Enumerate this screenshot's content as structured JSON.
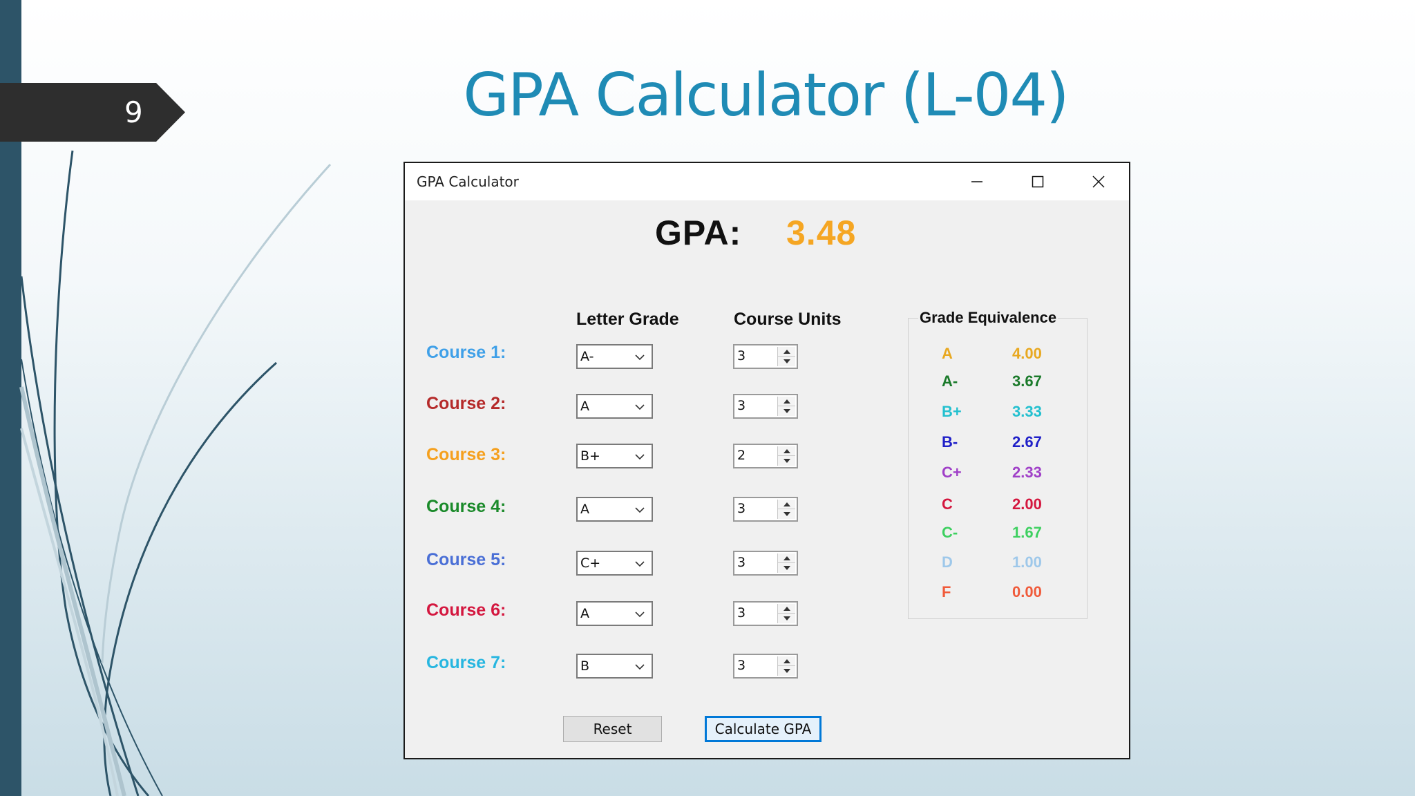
{
  "slide": {
    "number": "9",
    "title": "GPA Calculator (L-04)"
  },
  "window": {
    "title": "GPA Calculator",
    "controls": [
      "minimize-icon",
      "maximize-icon",
      "close-icon"
    ]
  },
  "gpa": {
    "label": "GPA:",
    "value": "3.48"
  },
  "headers": {
    "letter_grade": "Letter Grade",
    "course_units": "Course Units"
  },
  "courses": [
    {
      "label": "Course 1:",
      "color": "#3fa0e8",
      "grade": "A-",
      "units": "3"
    },
    {
      "label": "Course 2:",
      "color": "#b52a2a",
      "grade": "A",
      "units": "3"
    },
    {
      "label": "Course 3:",
      "color": "#f5a01e",
      "grade": "B+",
      "units": "2"
    },
    {
      "label": "Course 4:",
      "color": "#1a8a2a",
      "grade": "A",
      "units": "3"
    },
    {
      "label": "Course 5:",
      "color": "#4a6fd6",
      "grade": "C+",
      "units": "3"
    },
    {
      "label": "Course 6:",
      "color": "#d4173f",
      "grade": "A",
      "units": "3"
    },
    {
      "label": "Course 7:",
      "color": "#27b6e0",
      "grade": "B",
      "units": "3"
    }
  ],
  "grade_equivalence": {
    "title": "Grade Equivalence",
    "rows": [
      {
        "letter": "A",
        "value": "4.00",
        "color": "#e8a820"
      },
      {
        "letter": "A-",
        "value": "3.67",
        "color": "#1a7a2a"
      },
      {
        "letter": "B+",
        "value": "3.33",
        "color": "#23c0cf"
      },
      {
        "letter": "B-",
        "value": "2.67",
        "color": "#2020c8"
      },
      {
        "letter": "C+",
        "value": "2.33",
        "color": "#a040c8"
      },
      {
        "letter": "C",
        "value": "2.00",
        "color": "#d4173f"
      },
      {
        "letter": "C-",
        "value": "1.67",
        "color": "#3ed060"
      },
      {
        "letter": "D",
        "value": "1.00",
        "color": "#9ec8ea"
      },
      {
        "letter": "F",
        "value": "0.00",
        "color": "#f05a3a"
      }
    ]
  },
  "buttons": {
    "reset": "Reset",
    "calculate": "Calculate GPA"
  }
}
